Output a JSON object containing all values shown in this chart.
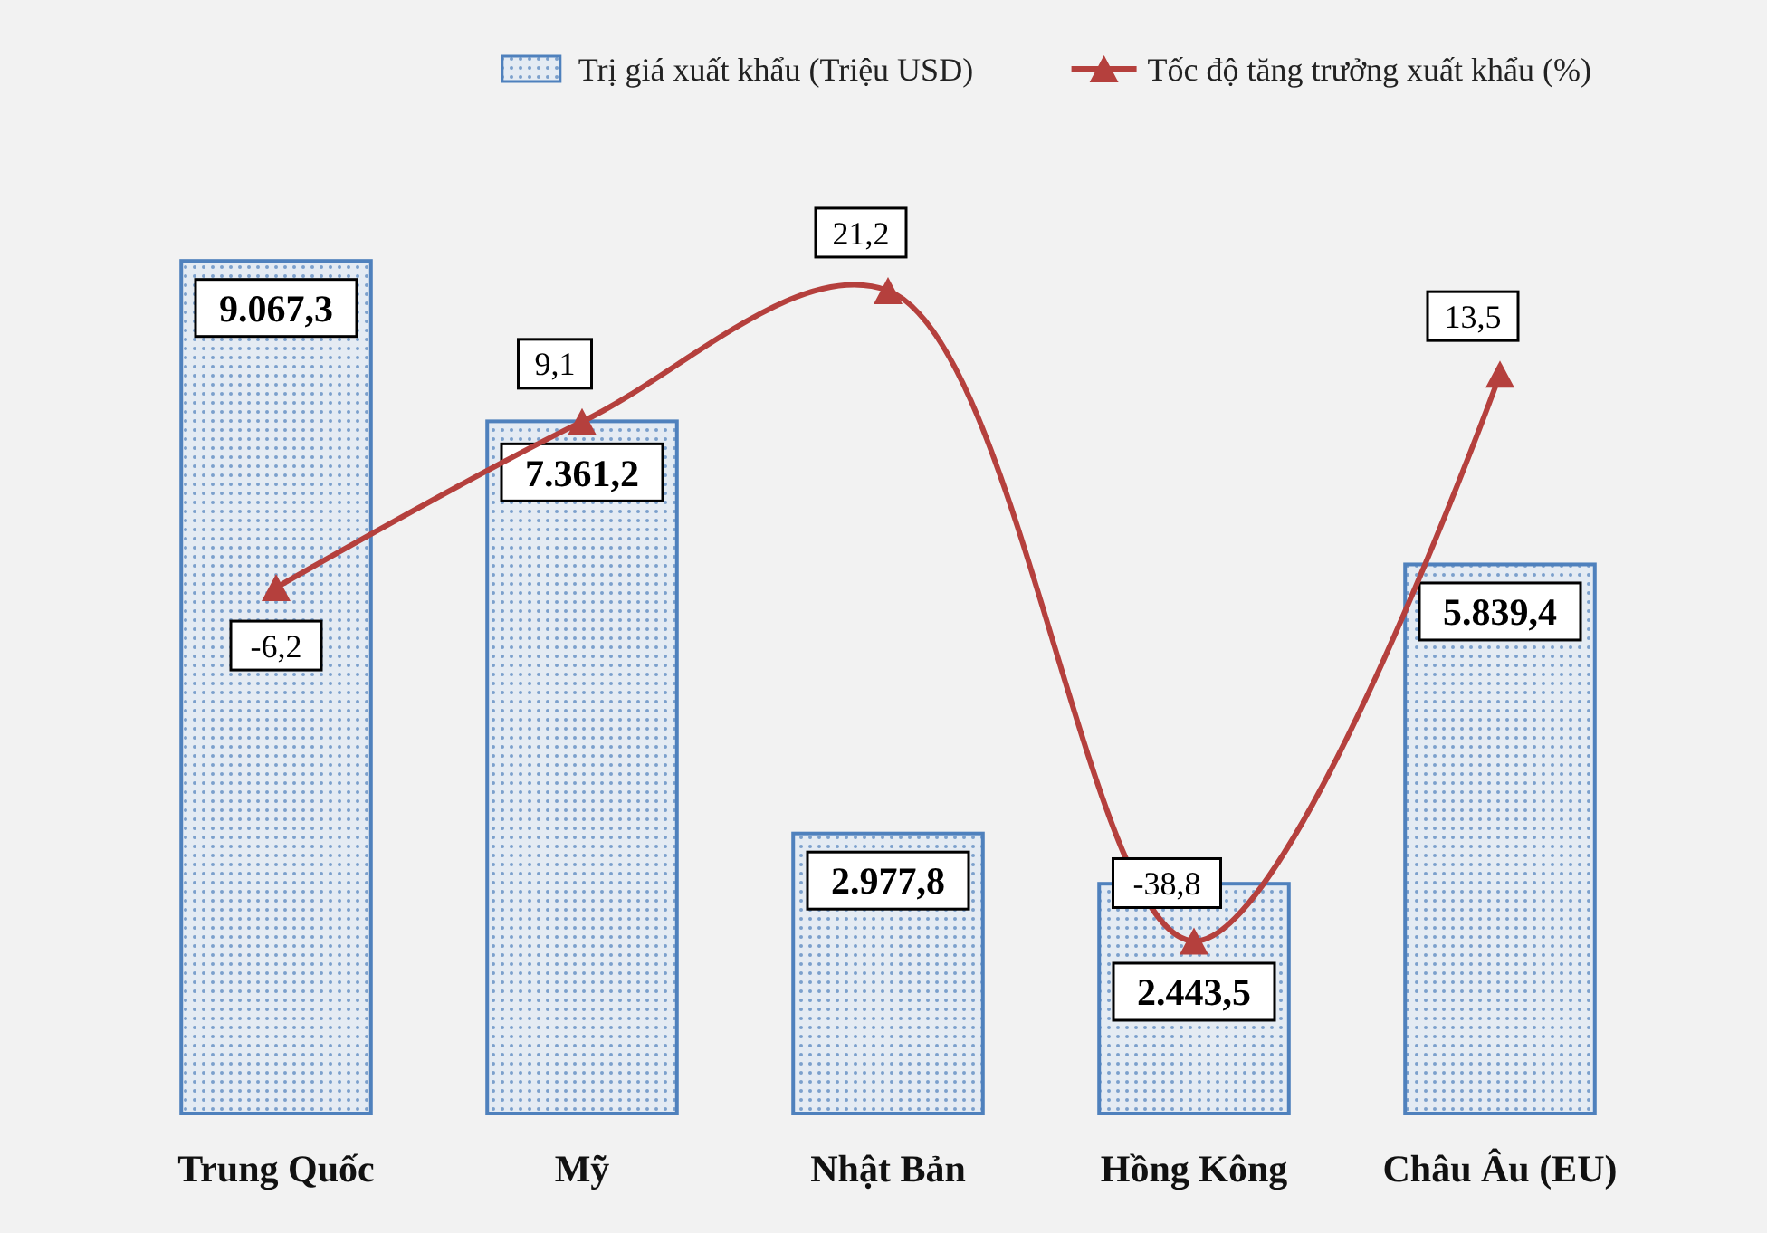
{
  "chart_data": {
    "type": "bar",
    "categories": [
      "Trung Quốc",
      "Mỹ",
      "Nhật Bản",
      "Hồng Kông",
      "Châu Âu (EU)"
    ],
    "legend": "top right",
    "marker": "triangle",
    "series": [
      {
        "name": "Trị giá xuất khẩu (Triệu USD)",
        "color": "#4f81bd",
        "values": [
          9067.3,
          7361.2,
          2977.8,
          2443.5,
          5839.4
        ],
        "value_labels": [
          "9.067,3",
          "7.361,2",
          "2.977,8",
          "2.443,5",
          "5.839,4"
        ]
      },
      {
        "name": "Tốc độ tăng trưởng xuất khẩu (%)",
        "type": "line",
        "axis": "y2",
        "color": "#b5403d",
        "values": [
          -6.2,
          9.1,
          21.2,
          -38.8,
          13.5
        ],
        "value_labels": [
          "-6,2",
          "9,1",
          "21,2",
          "-38,8",
          "13,5"
        ]
      }
    ]
  }
}
